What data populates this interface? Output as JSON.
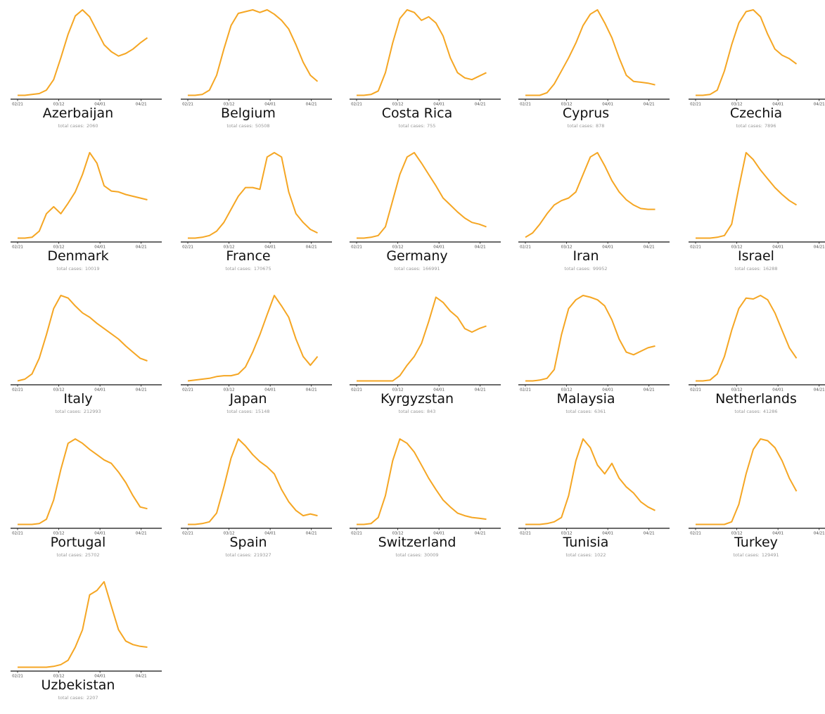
{
  "chart_data": {
    "type": "line",
    "line_color": "#f5a623",
    "axis_color": "#111111",
    "x_tick_labels": [
      "02/21",
      "03/12",
      "04/01",
      "04/21"
    ],
    "x_tick_days": [
      0,
      20,
      40,
      60
    ],
    "x_range_days": [
      0,
      70
    ],
    "grid": false,
    "cases_prefix": "total cases:",
    "panels": [
      {
        "country": "Azerbaijan",
        "total_cases": "2060",
        "y": [
          0.02,
          0.02,
          0.03,
          0.04,
          0.08,
          0.2,
          0.45,
          0.72,
          0.93,
          1.0,
          0.92,
          0.76,
          0.6,
          0.52,
          0.47,
          0.5,
          0.55,
          0.62,
          0.68
        ]
      },
      {
        "country": "Belgium",
        "total_cases": "50508",
        "y": [
          0.02,
          0.02,
          0.03,
          0.08,
          0.25,
          0.55,
          0.82,
          0.96,
          0.98,
          1.0,
          0.97,
          1.0,
          0.95,
          0.88,
          0.78,
          0.6,
          0.4,
          0.25,
          0.18
        ]
      },
      {
        "country": "Costa Rica",
        "total_cases": "755",
        "y": [
          0.02,
          0.02,
          0.03,
          0.07,
          0.28,
          0.62,
          0.9,
          1.0,
          0.97,
          0.88,
          0.92,
          0.85,
          0.7,
          0.45,
          0.28,
          0.22,
          0.2,
          0.24,
          0.28
        ]
      },
      {
        "country": "Cyprus",
        "total_cases": "878",
        "y": [
          0.02,
          0.02,
          0.02,
          0.05,
          0.15,
          0.3,
          0.45,
          0.62,
          0.82,
          0.95,
          1.0,
          0.85,
          0.68,
          0.45,
          0.25,
          0.18,
          0.17,
          0.16,
          0.14
        ]
      },
      {
        "country": "Czechia",
        "total_cases": "7896",
        "y": [
          0.02,
          0.02,
          0.03,
          0.08,
          0.3,
          0.6,
          0.85,
          0.98,
          1.0,
          0.92,
          0.72,
          0.55,
          0.48,
          0.44,
          0.38
        ]
      },
      {
        "country": "Denmark",
        "total_cases": "10019",
        "y": [
          0.02,
          0.02,
          0.03,
          0.1,
          0.3,
          0.38,
          0.3,
          0.42,
          0.55,
          0.75,
          1.0,
          0.88,
          0.62,
          0.56,
          0.55,
          0.52,
          0.5,
          0.48,
          0.46
        ]
      },
      {
        "country": "France",
        "total_cases": "170675",
        "y": [
          0.02,
          0.02,
          0.03,
          0.05,
          0.1,
          0.2,
          0.35,
          0.5,
          0.6,
          0.6,
          0.58,
          0.95,
          1.0,
          0.95,
          0.55,
          0.3,
          0.2,
          0.12,
          0.08
        ]
      },
      {
        "country": "Germany",
        "total_cases": "166991",
        "y": [
          0.02,
          0.02,
          0.03,
          0.05,
          0.15,
          0.45,
          0.75,
          0.95,
          1.0,
          0.88,
          0.75,
          0.62,
          0.48,
          0.4,
          0.32,
          0.25,
          0.2,
          0.18,
          0.15
        ]
      },
      {
        "country": "Iran",
        "total_cases": "99952",
        "y": [
          0.03,
          0.08,
          0.18,
          0.3,
          0.4,
          0.45,
          0.48,
          0.55,
          0.75,
          0.95,
          1.0,
          0.85,
          0.68,
          0.55,
          0.46,
          0.4,
          0.36,
          0.35,
          0.35
        ]
      },
      {
        "country": "Israel",
        "total_cases": "16288",
        "y": [
          0.02,
          0.02,
          0.02,
          0.03,
          0.05,
          0.18,
          0.6,
          1.0,
          0.92,
          0.8,
          0.7,
          0.6,
          0.52,
          0.45,
          0.4
        ]
      },
      {
        "country": "Italy",
        "total_cases": "212993",
        "y": [
          0.02,
          0.04,
          0.1,
          0.28,
          0.55,
          0.85,
          1.0,
          0.97,
          0.88,
          0.8,
          0.75,
          0.68,
          0.62,
          0.56,
          0.5,
          0.42,
          0.35,
          0.28,
          0.25
        ]
      },
      {
        "country": "Japan",
        "total_cases": "15148",
        "y": [
          0.02,
          0.03,
          0.04,
          0.05,
          0.07,
          0.08,
          0.08,
          0.1,
          0.18,
          0.35,
          0.55,
          0.78,
          1.0,
          0.88,
          0.75,
          0.5,
          0.3,
          0.2,
          0.3
        ]
      },
      {
        "country": "Kyrgyzstan",
        "total_cases": "843",
        "y": [
          0.02,
          0.02,
          0.02,
          0.02,
          0.02,
          0.02,
          0.08,
          0.2,
          0.3,
          0.45,
          0.7,
          0.98,
          0.92,
          0.82,
          0.75,
          0.62,
          0.58,
          0.62,
          0.65
        ]
      },
      {
        "country": "Malaysia",
        "total_cases": "6361",
        "y": [
          0.02,
          0.02,
          0.03,
          0.05,
          0.15,
          0.55,
          0.85,
          0.95,
          1.0,
          0.98,
          0.95,
          0.88,
          0.72,
          0.5,
          0.35,
          0.32,
          0.36,
          0.4,
          0.42
        ]
      },
      {
        "country": "Netherlands",
        "total_cases": "41286",
        "y": [
          0.02,
          0.02,
          0.03,
          0.1,
          0.3,
          0.6,
          0.85,
          0.97,
          0.96,
          1.0,
          0.95,
          0.8,
          0.6,
          0.4,
          0.28
        ]
      },
      {
        "country": "Portugal",
        "total_cases": "25702",
        "y": [
          0.02,
          0.02,
          0.02,
          0.03,
          0.08,
          0.3,
          0.65,
          0.95,
          1.0,
          0.95,
          0.88,
          0.82,
          0.76,
          0.72,
          0.62,
          0.5,
          0.35,
          0.22,
          0.2
        ]
      },
      {
        "country": "Spain",
        "total_cases": "219327",
        "y": [
          0.02,
          0.02,
          0.03,
          0.05,
          0.15,
          0.45,
          0.78,
          1.0,
          0.92,
          0.82,
          0.74,
          0.68,
          0.6,
          0.42,
          0.28,
          0.18,
          0.12,
          0.14,
          0.12
        ]
      },
      {
        "country": "Switzerland",
        "total_cases": "30009",
        "y": [
          0.02,
          0.02,
          0.03,
          0.1,
          0.35,
          0.75,
          1.0,
          0.95,
          0.85,
          0.7,
          0.55,
          0.42,
          0.3,
          0.22,
          0.15,
          0.12,
          0.1,
          0.09,
          0.08
        ]
      },
      {
        "country": "Tunisia",
        "total_cases": "1022",
        "y": [
          0.02,
          0.02,
          0.02,
          0.03,
          0.05,
          0.1,
          0.35,
          0.75,
          1.0,
          0.9,
          0.7,
          0.6,
          0.72,
          0.55,
          0.45,
          0.38,
          0.28,
          0.22,
          0.18
        ]
      },
      {
        "country": "Turkey",
        "total_cases": "129491",
        "y": [
          0.02,
          0.02,
          0.02,
          0.02,
          0.02,
          0.05,
          0.25,
          0.6,
          0.88,
          1.0,
          0.98,
          0.9,
          0.75,
          0.55,
          0.4
        ]
      },
      {
        "country": "Uzbekistan",
        "total_cases": "2207",
        "y": [
          0.02,
          0.02,
          0.02,
          0.02,
          0.02,
          0.03,
          0.05,
          0.1,
          0.25,
          0.45,
          0.85,
          0.9,
          1.0,
          0.72,
          0.45,
          0.32,
          0.28,
          0.26,
          0.25
        ]
      }
    ]
  }
}
